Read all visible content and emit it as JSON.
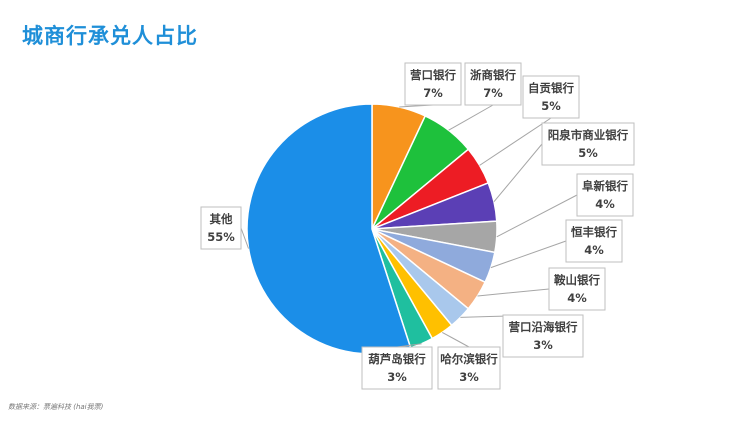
{
  "title": "城商行承兑人占比",
  "source": "数据来源：票遍科技 (hai我票)",
  "colors": {
    "营口银行": "#f7941d",
    "浙商银行": "#1ec13c",
    "自贡银行": "#ed1c24",
    "阳泉市商业银行": "#5b3fb5",
    "阜新银行": "#a6a6a6",
    "恒丰银行": "#8faadc",
    "鞍山银行": "#f4b183",
    "营口沿海银行": "#a9c8ec",
    "哈尔滨银行": "#ffc000",
    "葫芦岛银行": "#1fbf9f",
    "其他": "#1b8ee8"
  },
  "chart_data": {
    "type": "pie",
    "title": "城商行承兑人占比",
    "start_angle_deg": -90,
    "slices": [
      {
        "label": "营口银行",
        "pct_label": "7%",
        "value": 7
      },
      {
        "label": "浙商银行",
        "pct_label": "7%",
        "value": 7
      },
      {
        "label": "自贡银行",
        "pct_label": "5%",
        "value": 5
      },
      {
        "label": "阳泉市商业银行",
        "pct_label": "5%",
        "value": 5
      },
      {
        "label": "阜新银行",
        "pct_label": "4%",
        "value": 4
      },
      {
        "label": "恒丰银行",
        "pct_label": "4%",
        "value": 4
      },
      {
        "label": "鞍山银行",
        "pct_label": "4%",
        "value": 4
      },
      {
        "label": "营口沿海银行",
        "pct_label": "3%",
        "value": 3
      },
      {
        "label": "哈尔滨银行",
        "pct_label": "3%",
        "value": 3
      },
      {
        "label": "葫芦岛银行",
        "pct_label": "3%",
        "value": 3
      },
      {
        "label": "其他",
        "pct_label": "55%",
        "value": 55
      }
    ]
  }
}
